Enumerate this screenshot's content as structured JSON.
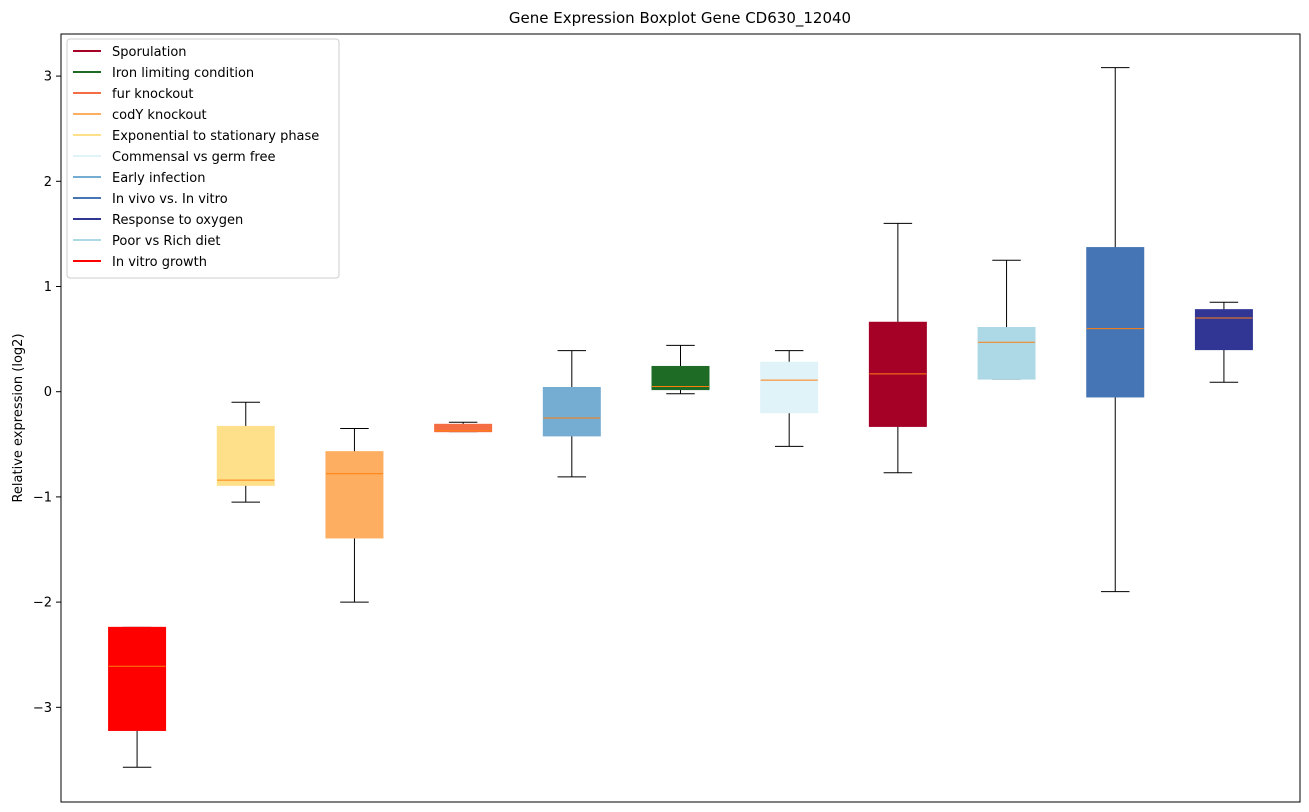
{
  "chart_data": {
    "type": "boxplot",
    "title": "Gene Expression Boxplot Gene CD630_12040",
    "xlabel": "",
    "ylabel": "Relative expression (log2)",
    "ylim": [
      -3.9,
      3.4
    ],
    "yticks": [
      -3,
      -2,
      -1,
      0,
      1,
      2,
      3
    ],
    "ytick_labels": [
      "−3",
      "−2",
      "−1",
      "0",
      "1",
      "2",
      "3"
    ],
    "grid": false,
    "legend_position": "top-left",
    "median_color": "#ff7f0e",
    "whisker_color": "#000000",
    "legend": [
      {
        "label": "Sporulation",
        "color": "#a50026"
      },
      {
        "label": "Iron limiting condition",
        "color": "#1e6b26"
      },
      {
        "label": "fur knockout",
        "color": "#f46d43"
      },
      {
        "label": "codY knockout",
        "color": "#fdae61"
      },
      {
        "label": "Exponential to stationary phase",
        "color": "#fee08b"
      },
      {
        "label": "Commensal vs germ free",
        "color": "#e0f3f8"
      },
      {
        "label": "Early infection",
        "color": "#74add1"
      },
      {
        "label": "In vivo vs. In vitro",
        "color": "#4575b4"
      },
      {
        "label": "Response to oxygen",
        "color": "#313695"
      },
      {
        "label": "Poor vs Rich diet",
        "color": "#add8e6"
      },
      {
        "label": "In vitro growth",
        "color": "#ff0000"
      }
    ],
    "boxes": [
      {
        "condition": "In vitro growth",
        "color": "#ff0000",
        "whislo": -3.57,
        "q1": -3.22,
        "med": -2.61,
        "q3": -2.24,
        "whishi": -2.24
      },
      {
        "condition": "Exponential to stationary phase",
        "color": "#fee08b",
        "whislo": -1.05,
        "q1": -0.89,
        "med": -0.84,
        "q3": -0.33,
        "whishi": -0.1
      },
      {
        "condition": "codY knockout",
        "color": "#fdae61",
        "whislo": -2.0,
        "q1": -1.39,
        "med": -0.78,
        "q3": -0.57,
        "whishi": -0.35
      },
      {
        "condition": "fur knockout",
        "color": "#f46d43",
        "whislo": -0.38,
        "q1": -0.38,
        "med": -0.37,
        "q3": -0.31,
        "whishi": -0.29
      },
      {
        "condition": "Early infection",
        "color": "#74add1",
        "whislo": -0.81,
        "q1": -0.42,
        "med": -0.25,
        "q3": 0.04,
        "whishi": 0.39
      },
      {
        "condition": "Iron limiting condition",
        "color": "#1e6b26",
        "whislo": -0.02,
        "q1": 0.02,
        "med": 0.05,
        "q3": 0.24,
        "whishi": 0.44
      },
      {
        "condition": "Commensal vs germ free",
        "color": "#e0f3f8",
        "whislo": -0.52,
        "q1": -0.2,
        "med": 0.11,
        "q3": 0.28,
        "whishi": 0.39
      },
      {
        "condition": "Sporulation",
        "color": "#a50026",
        "whislo": -0.77,
        "q1": -0.33,
        "med": 0.17,
        "q3": 0.66,
        "whishi": 1.6
      },
      {
        "condition": "Poor vs Rich diet",
        "color": "#add8e6",
        "whislo": 0.12,
        "q1": 0.12,
        "med": 0.47,
        "q3": 0.61,
        "whishi": 1.25
      },
      {
        "condition": "In vivo vs. In vitro",
        "color": "#4575b4",
        "whislo": -1.9,
        "q1": -0.05,
        "med": 0.6,
        "q3": 1.37,
        "whishi": 3.08
      },
      {
        "condition": "Response to oxygen",
        "color": "#313695",
        "whislo": 0.09,
        "q1": 0.4,
        "med": 0.7,
        "q3": 0.78,
        "whishi": 0.85
      }
    ]
  }
}
